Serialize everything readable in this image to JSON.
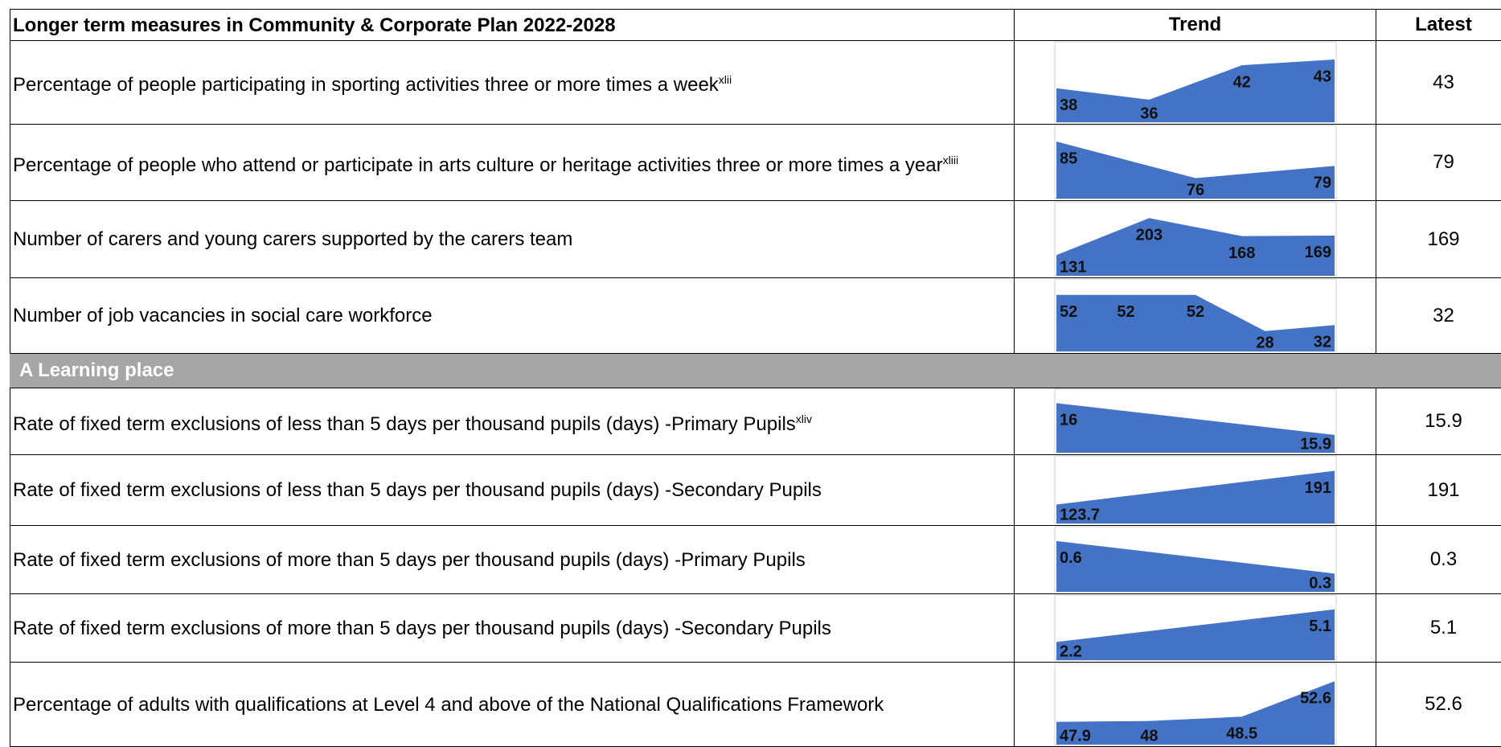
{
  "header": {
    "measure": "Longer term measures in Community & Corporate Plan 2022-2028",
    "trend": "Trend",
    "latest": "Latest"
  },
  "groups": [
    {
      "rows": [
        {
          "label": "Percentage of people participating in sporting activities three or more times a week",
          "sup": "xlii",
          "trend": [
            38,
            36,
            42,
            43
          ],
          "latest": 43
        },
        {
          "label": "Percentage of people who attend or participate in arts culture or heritage activities three or more times a year",
          "sup": "xliii",
          "trend": [
            85,
            76,
            79
          ],
          "latest": 79
        },
        {
          "label": "Number of carers and young carers supported by the carers team",
          "trend": [
            131,
            203,
            168,
            169
          ],
          "latest": 169
        },
        {
          "label": "Number of job vacancies in social care workforce",
          "trend": [
            52,
            52,
            52,
            28,
            32
          ],
          "latest": 32
        }
      ]
    },
    {
      "title": "A Learning place",
      "rows": [
        {
          "label": "Rate of fixed term exclusions of less than 5 days per thousand pupils (days) -Primary Pupils",
          "sup": "xliv",
          "trend": [
            16,
            15.9
          ],
          "latest": 15.9
        },
        {
          "label": "Rate of fixed term exclusions of less than 5 days per thousand pupils (days) -Secondary Pupils",
          "trend": [
            123.7,
            191
          ],
          "latest": 191
        },
        {
          "label": "Rate of fixed term exclusions of more than 5 days per thousand pupils (days) -Primary Pupils",
          "trend": [
            0.6,
            0.3
          ],
          "latest": 0.3
        },
        {
          "label": "Rate of fixed term exclusions of more than 5 days per thousand pupils (days) -Secondary Pupils",
          "trend": [
            2.2,
            5.1
          ],
          "latest": 5.1
        },
        {
          "label": "Percentage of adults with qualifications at Level 4 and above of the National Qualifications Framework",
          "trend": [
            47.9,
            48,
            48.5,
            52.6
          ],
          "latest": 52.6
        }
      ]
    }
  ]
}
